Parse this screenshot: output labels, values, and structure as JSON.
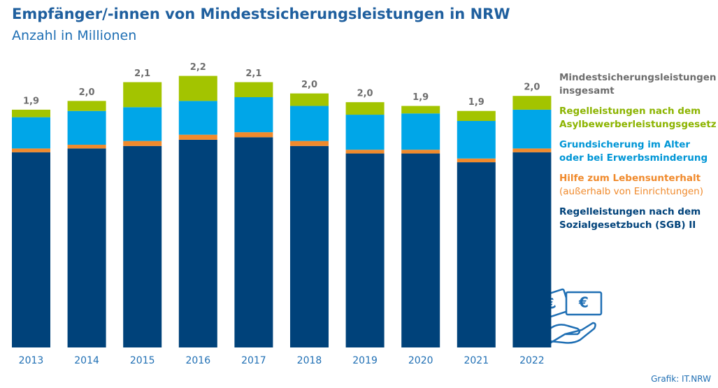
{
  "chart_data": {
    "type": "stacked-bar",
    "title": "Empfänger/-innen von Mindestsicherungsleistungen in NRW",
    "subtitle": "Anzahl in Millionen",
    "categories": [
      "2013",
      "2014",
      "2015",
      "2016",
      "2017",
      "2018",
      "2019",
      "2020",
      "2021",
      "2022"
    ],
    "series": [
      {
        "name": "Regelleistungen nach dem Sozialgesetzbuch (SGB) II",
        "color": "#00427a",
        "text_color": "#00427a",
        "values": [
          1.56,
          1.59,
          1.61,
          1.66,
          1.68,
          1.61,
          1.55,
          1.55,
          1.48,
          1.56
        ]
      },
      {
        "name": "Hilfe zum Lebensunterhalt",
        "note": "(außerhalb von Einrichtungen)",
        "color": "#f08a2c",
        "text_color": "#f08a2c",
        "values": [
          0.03,
          0.03,
          0.04,
          0.04,
          0.04,
          0.04,
          0.03,
          0.03,
          0.03,
          0.03
        ]
      },
      {
        "name": "Grundsicherung im Alter oder bei Erwerbsminderung",
        "color": "#00a6e8",
        "text_color": "#0096d6",
        "values": [
          0.25,
          0.27,
          0.27,
          0.27,
          0.28,
          0.28,
          0.28,
          0.29,
          0.3,
          0.31
        ]
      },
      {
        "name": "Regelleistungen nach dem Asylbewerberleistungsgesetz",
        "color": "#a3c400",
        "text_color": "#8cb400",
        "values": [
          0.06,
          0.08,
          0.2,
          0.2,
          0.12,
          0.1,
          0.1,
          0.06,
          0.08,
          0.11
        ]
      }
    ],
    "total": {
      "name": "Mindestsicherungsleistungen insgesamt",
      "color": "#6e6e6e",
      "values": [
        1.9,
        2.0,
        2.1,
        2.2,
        2.1,
        2.0,
        2.0,
        1.9,
        1.9,
        2.0
      ],
      "value_labels": [
        "1,9",
        "2,0",
        "2,1",
        "2,2",
        "2,1",
        "2,0",
        "2,0",
        "1,9",
        "1,9",
        "2,0"
      ]
    },
    "source": "Grafik: IT.NRW"
  }
}
